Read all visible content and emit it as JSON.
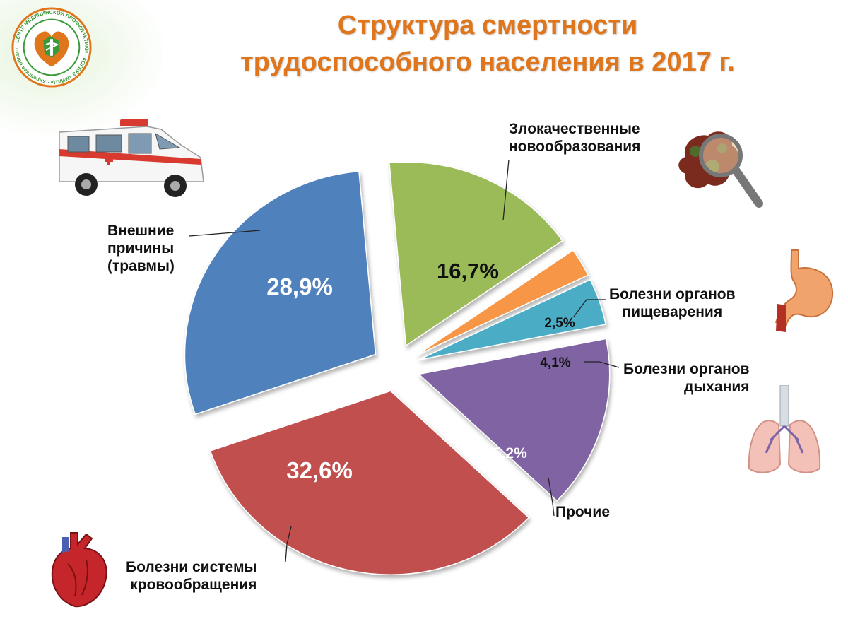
{
  "title": {
    "line1": "Структура смертности",
    "line2": "трудоспособного населения в 2017 г."
  },
  "logo": {
    "ring_text": "ЦЕНТР МЕДИЦИНСКОЙ ПРОФИЛАКТИКИ · КОГБУЗ «МИАЦ» · Кировская область"
  },
  "chart_data": {
    "type": "pie",
    "title": "Структура смертности трудоспособного населения в 2017 г.",
    "unit": "%",
    "slices": [
      {
        "label": "Злокачественные новообразования",
        "value": 16.7,
        "display": "16,7%",
        "color": "#9bbb59"
      },
      {
        "label": "Болезни органов пищеварения",
        "value": 2.5,
        "display": "2,5%",
        "color": "#f79646"
      },
      {
        "label": "Болезни органов дыхания",
        "value": 4.1,
        "display": "4,1%",
        "color": "#4bacc6"
      },
      {
        "label": "Прочие",
        "value": 15.2,
        "display": "15,2%",
        "color": "#8064a2"
      },
      {
        "label": "Болезни системы кровообращения",
        "value": 32.6,
        "display": "32,6%",
        "color": "#c0504d"
      },
      {
        "label": "Внешние причины (травмы)",
        "value": 28.9,
        "display": "28,9%",
        "color": "#4f81bd"
      }
    ]
  },
  "labels": {
    "oncology": [
      "Злокачественные",
      "новообразования"
    ],
    "digestive": [
      "Болезни органов",
      "пищеварения"
    ],
    "respiratory": [
      "Болезни органов",
      "дыхания"
    ],
    "other": [
      "Прочие"
    ],
    "circulatory": [
      "Болезни системы",
      "кровообращения"
    ],
    "external": [
      "Внешние",
      "причины",
      "(травмы)"
    ]
  },
  "icons": {
    "ambulance": "ambulance-icon",
    "magnifier": "magnifier-icon",
    "stomach": "stomach-icon",
    "lungs": "lungs-icon",
    "heart": "heart-icon"
  }
}
